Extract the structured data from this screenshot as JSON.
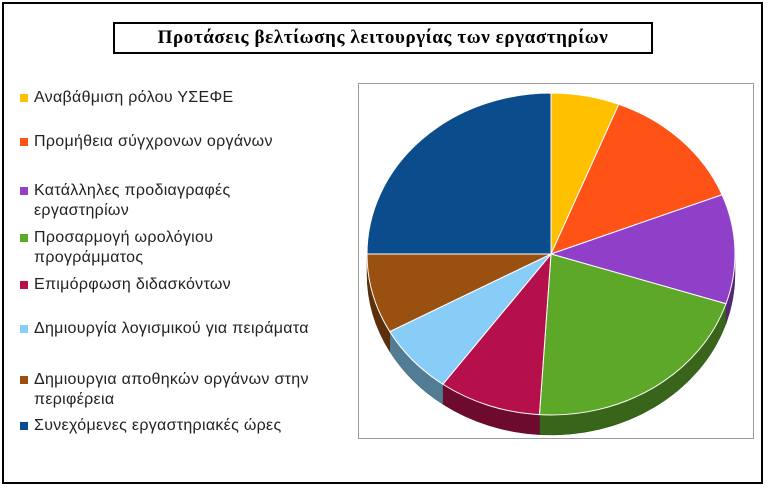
{
  "chart_data": {
    "type": "pie",
    "title": "Προτάσεις βελτίωσης λειτουργίας των εργαστηρίων",
    "legend_position": "left",
    "style": "3d",
    "slices": [
      {
        "label": "Αναβάθμιση ρόλου ΥΣΕΦΕ",
        "value": 6,
        "color": "#FFC000"
      },
      {
        "label": "Προμήθεια σύγχρονων οργάνων",
        "value": 13,
        "color": "#FF5217"
      },
      {
        "label": "Κατάλληλες προδιαγραφές εργαστηρίων",
        "value": 11,
        "color": "#9040C8"
      },
      {
        "label": "Προσαρμογή ωρολόγιου προγράμματος",
        "value": 21,
        "color": "#5EA829"
      },
      {
        "label": "Επιμόρφωση διδασκόντων",
        "value": 9,
        "color": "#B5104C"
      },
      {
        "label": "Δημιουργία λογισμικού για πειράματα",
        "value": 7,
        "color": "#88CDF7"
      },
      {
        "label": "Δημιουργια αποθηκών οργάνων στην περιφέρεια",
        "value": 8,
        "color": "#9A5010"
      },
      {
        "label": "Συνεχόμενες εργαστηριακές ώρες",
        "value": 25,
        "color": "#0B4D8C"
      }
    ]
  }
}
